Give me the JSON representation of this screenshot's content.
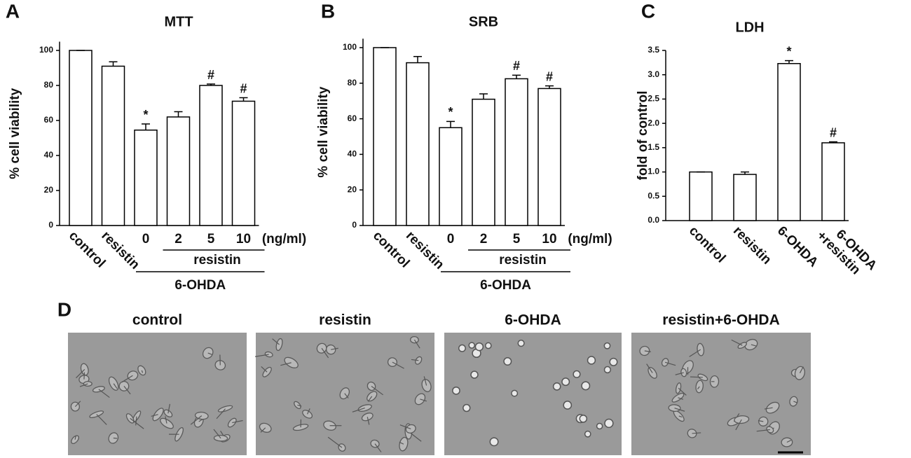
{
  "chart_data": [
    {
      "type": "bar",
      "panel": "A",
      "title": "MTT",
      "y_label": "% cell viability",
      "categories": [
        "control",
        "resistin",
        "0",
        "2",
        "5",
        "10"
      ],
      "values": [
        100,
        91,
        54.5,
        62,
        80,
        71
      ],
      "errors": [
        0,
        2.5,
        3.5,
        3,
        0.8,
        2
      ],
      "annotations": [
        null,
        null,
        "*",
        null,
        "#",
        "#"
      ],
      "unit": "(ng/ml)",
      "group_labels": [
        "resistin",
        "6-OHDA"
      ],
      "color": "#ffffff",
      "ylim": [
        0,
        105
      ],
      "yticks": [
        0,
        20,
        40,
        60,
        80,
        100
      ]
    },
    {
      "type": "bar",
      "panel": "B",
      "title": "SRB",
      "y_label": "% cell viability",
      "categories": [
        "control",
        "resistin",
        "0",
        "2",
        "5",
        "10"
      ],
      "values": [
        100,
        91.5,
        55,
        71,
        82.5,
        77
      ],
      "errors": [
        0,
        3.5,
        3.5,
        3,
        2,
        1.5
      ],
      "annotations": [
        null,
        null,
        "*",
        null,
        "#",
        "#"
      ],
      "unit": "(ng/ml)",
      "group_labels": [
        "resistin",
        "6-OHDA"
      ],
      "color": "#ffffff",
      "ylim": [
        0,
        105
      ],
      "yticks": [
        0,
        20,
        40,
        60,
        80,
        100
      ]
    },
    {
      "type": "bar",
      "panel": "C",
      "title": "LDH",
      "y_label": "fold of control",
      "categories": [
        "control",
        "resistin",
        "6-OHDA",
        "6-OHDA +resistin"
      ],
      "values": [
        1.0,
        0.95,
        3.23,
        1.6
      ],
      "errors": [
        0,
        0.05,
        0.06,
        0.02
      ],
      "annotations": [
        null,
        null,
        "*",
        "#"
      ],
      "color": "#ffffff",
      "ylim": [
        0,
        3.5
      ],
      "yticks": [
        {
          "value": 0,
          "label": "0.0"
        },
        {
          "value": 0.5,
          "label": "0.5"
        },
        {
          "value": 1,
          "label": "1.0"
        },
        {
          "value": 1.5,
          "label": "1.5"
        },
        {
          "value": 2,
          "label": "2.0"
        },
        {
          "value": 2.5,
          "label": "2.5"
        },
        {
          "value": 3,
          "label": "3.0"
        },
        {
          "value": 3.5,
          "label": "3.5"
        }
      ]
    }
  ],
  "panel_d": {
    "label": "D",
    "titles": [
      "control",
      "resistin",
      "6-OHDA",
      "resistin+6-OHDA"
    ]
  }
}
